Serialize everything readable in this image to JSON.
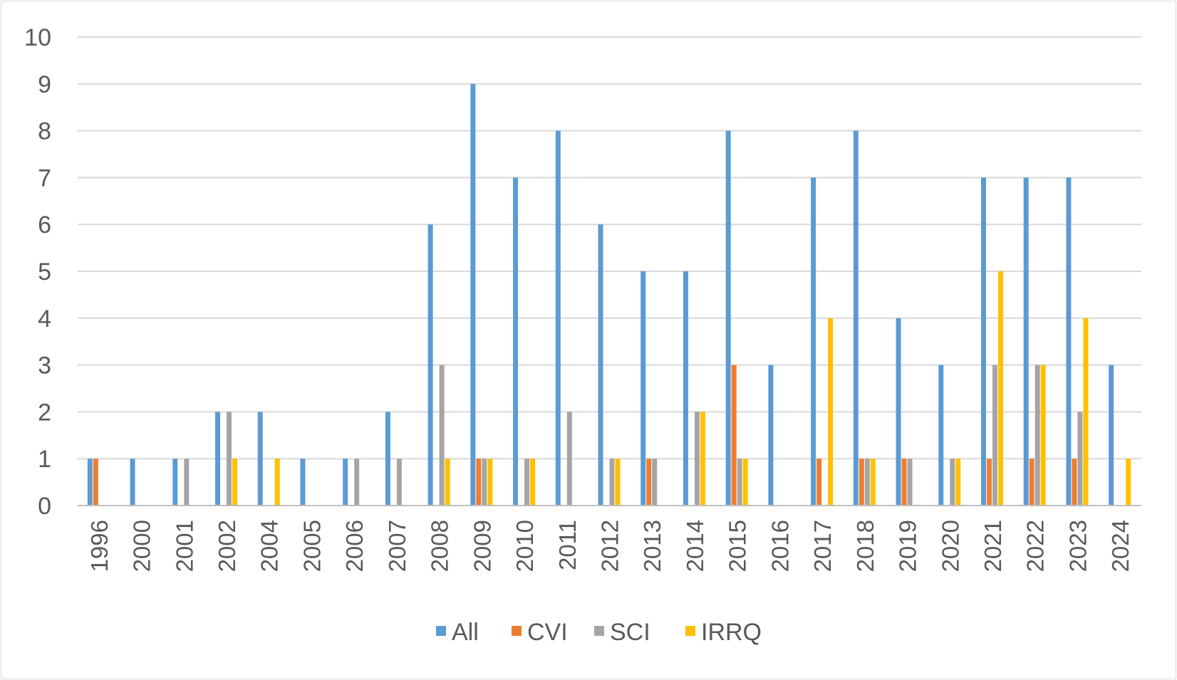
{
  "chart_data": {
    "type": "bar",
    "title": "",
    "xlabel": "",
    "ylabel": "",
    "ylim": [
      0,
      10
    ],
    "yticks": [
      0,
      1,
      2,
      3,
      4,
      5,
      6,
      7,
      8,
      9,
      10
    ],
    "grid": true,
    "legend_position": "bottom",
    "categories": [
      "1996",
      "2000",
      "2001",
      "2002",
      "2004",
      "2005",
      "2006",
      "2007",
      "2008",
      "2009",
      "2010",
      "2011",
      "2012",
      "2013",
      "2014",
      "2015",
      "2016",
      "2017",
      "2018",
      "2019",
      "2020",
      "2021",
      "2022",
      "2023",
      "2024"
    ],
    "series": [
      {
        "name": "All",
        "color": "#5b9bd5",
        "values": [
          1,
          1,
          1,
          2,
          2,
          1,
          1,
          2,
          6,
          9,
          7,
          8,
          6,
          5,
          5,
          8,
          3,
          7,
          8,
          4,
          3,
          7,
          7,
          7,
          3
        ]
      },
      {
        "name": "CVI",
        "color": "#ed7d31",
        "values": [
          1,
          0,
          0,
          0,
          0,
          0,
          0,
          0,
          0,
          1,
          0,
          0,
          0,
          1,
          0,
          3,
          0,
          1,
          1,
          1,
          0,
          1,
          1,
          1,
          0
        ]
      },
      {
        "name": "SCI",
        "color": "#a5a5a5",
        "values": [
          0,
          0,
          1,
          2,
          0,
          0,
          1,
          1,
          3,
          1,
          1,
          2,
          1,
          1,
          2,
          1,
          0,
          0,
          1,
          1,
          1,
          3,
          3,
          2,
          0
        ]
      },
      {
        "name": "IRRQ",
        "color": "#ffc000",
        "values": [
          0,
          0,
          0,
          1,
          1,
          0,
          0,
          0,
          1,
          1,
          1,
          0,
          1,
          0,
          2,
          1,
          0,
          4,
          1,
          0,
          1,
          5,
          3,
          4,
          1
        ]
      }
    ]
  }
}
